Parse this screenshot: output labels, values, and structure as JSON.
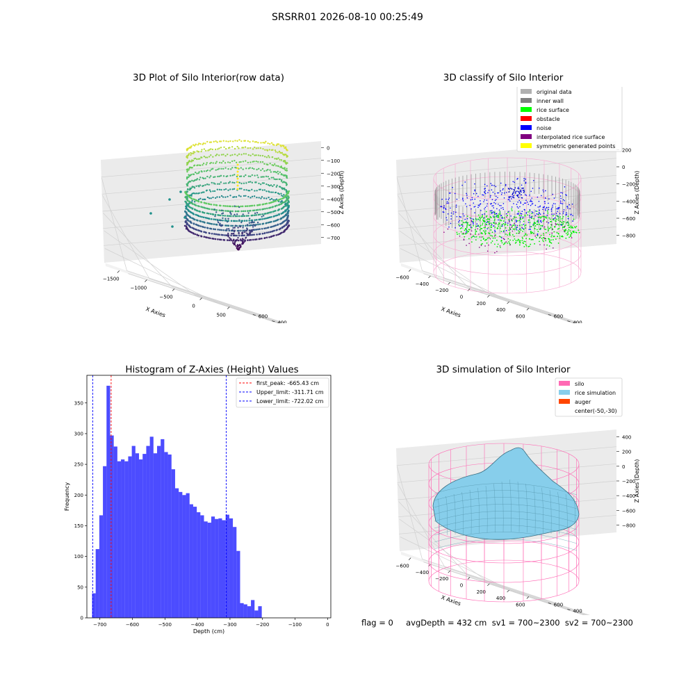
{
  "suptitle": "SRSRR01 2026-08-10 00:25:49",
  "panels": {
    "raw": {
      "title": "3D Plot of Silo Interior(row data)",
      "xlabel": "X Axies",
      "ylabel": "Y Axies",
      "zlabel": "Z Axies (Depth)",
      "xticks": [
        "−1500",
        "−1000",
        "−500",
        "0",
        "500"
      ],
      "yticks": [
        "−600",
        "−400",
        "−200",
        "0",
        "200",
        "400",
        "600"
      ],
      "zticks": [
        "0",
        "−100",
        "−200",
        "−300",
        "−400",
        "−500",
        "−600",
        "−700"
      ]
    },
    "classify": {
      "title": "3D classify of Silo Interior",
      "xlabel": "X Axies",
      "ylabel": "Y Axies",
      "zlabel": "Z Axies (Depth)",
      "xticks": [
        "−600",
        "−400",
        "−200",
        "0",
        "200",
        "400",
        "600"
      ],
      "yticks": [
        "−600",
        "−400",
        "−200",
        "0",
        "200",
        "400",
        "600"
      ],
      "zticks": [
        "200",
        "0",
        "−200",
        "−400",
        "−600",
        "−800"
      ],
      "zticks_top": "0",
      "legend": [
        {
          "label": "original data",
          "color": "#b0b0b0"
        },
        {
          "label": "inner wall",
          "color": "#808080"
        },
        {
          "label": "rice surface",
          "color": "#00ff00"
        },
        {
          "label": "obstacle",
          "color": "#ff0000"
        },
        {
          "label": "noise",
          "color": "#0000ff"
        },
        {
          "label": "interpolated rice surface",
          "color": "#800080"
        },
        {
          "label": "symmetric generated points",
          "color": "#ffff00"
        }
      ]
    },
    "simulation": {
      "title": "3D simulation of Silo Interior",
      "xlabel": "X Axies",
      "ylabel": "Y Axies",
      "zlabel": "Z Axies (Depth)",
      "xticks": [
        "−600",
        "−400",
        "−200",
        "0",
        "200",
        "400",
        "600"
      ],
      "yticks": [
        "−600",
        "−400",
        "−200",
        "0",
        "200",
        "400",
        "600"
      ],
      "zticks": [
        "400",
        "200",
        "0",
        "−200",
        "−400",
        "−600",
        "−800"
      ],
      "legend": [
        {
          "label": "silo",
          "color": "#ff69b4"
        },
        {
          "label": "rice simulation",
          "color": "#87ceeb"
        },
        {
          "label": "auger",
          "color": "#ff4500"
        },
        {
          "label": "center(-50,-30)",
          "color": ""
        }
      ]
    }
  },
  "chart_data": {
    "type": "bar",
    "title": "Histogram of Z-Axies (Height) Values",
    "xlabel": "Depth (cm)",
    "ylabel": "Frequency",
    "xlim": [
      -740,
      10
    ],
    "ylim": [
      0,
      395
    ],
    "bin_start": -724,
    "bin_width": 11.1,
    "values": [
      40,
      112,
      167,
      247,
      378,
      297,
      279,
      255,
      258,
      255,
      263,
      280,
      268,
      258,
      267,
      280,
      295,
      268,
      280,
      291,
      270,
      266,
      242,
      211,
      205,
      200,
      203,
      185,
      181,
      172,
      167,
      157,
      155,
      165,
      161,
      162,
      159,
      168,
      162,
      148,
      109,
      24,
      22,
      19,
      29,
      12,
      19
    ],
    "xticks": [
      -700,
      -600,
      -500,
      -400,
      -300,
      -200,
      -100,
      0
    ],
    "xtick_labels": [
      "−700",
      "−600",
      "−500",
      "−400",
      "−300",
      "−200",
      "−100",
      "0"
    ],
    "yticks": [
      0,
      50,
      100,
      150,
      200,
      250,
      300,
      350
    ],
    "bar_color": "#0000ff",
    "vlines": [
      {
        "label": "first_peak: -665.43 cm",
        "x": -665.43,
        "color": "#ff0000"
      },
      {
        "label": "Upper_limit: -311.71 cm",
        "x": -311.71,
        "color": "#0000ff"
      },
      {
        "label": "Lower_limit: -722.02 cm",
        "x": -722.02,
        "color": "#0000ff"
      }
    ],
    "legend_position": "top-right"
  },
  "status": {
    "text": "flag = 0     avgDepth = 432 cm  sv1 = 700~2300  sv2 = 700~2300"
  }
}
